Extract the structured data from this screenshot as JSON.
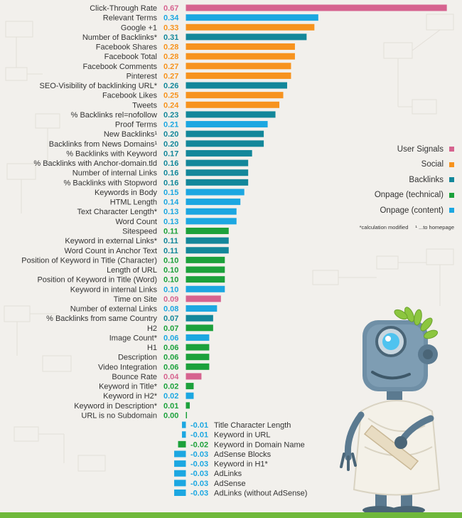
{
  "chart_data": {
    "type": "bar",
    "orientation": "horizontal",
    "title": "",
    "xlabel": "",
    "ylabel": "",
    "grid": false,
    "legend_placement": "right",
    "categories": [
      "Click-Through Rate",
      "Relevant Terms",
      "Google +1",
      "Number of Backlinks*",
      "Facebook Shares",
      "Facebook Total",
      "Facebook Comments",
      "Pinterest",
      "SEO-Visibility of backlinking URL*",
      "Facebook Likes",
      "Tweets",
      "% Backlinks rel=nofollow",
      "Proof Terms",
      "New Backlinks¹",
      "Backlinks from News Domains¹",
      "% Backlinks with Keyword",
      "% Backlinks with Anchor-domain.tld",
      "Number of internal Links",
      "% Backlinks with Stopword",
      "Keywords in Body",
      "HTML Length",
      "Text Character Length*",
      "Word Count",
      "Sitespeed",
      "Keyword in external Links*",
      "Word Count in Anchor Text",
      "Position of Keyword in Title (Character)",
      "Length of URL",
      "Position of Keyword in Title (Word)",
      "Keyword in internal Links",
      "Time on Site",
      "Number of external Links",
      "% Backlinks from same Country",
      "H2",
      "Image Count*",
      "H1",
      "Description",
      "Video Integration",
      "Bounce Rate",
      "Keyword in Title*",
      "Keyword in H2*",
      "Keyword in Description*",
      "URL is no Subdomain",
      "Title Character Length",
      "Keyword in URL",
      "Keyword in Domain Name",
      "AdSense Blocks",
      "Keyword in H1*",
      "AdLinks",
      "AdSense",
      "AdLinks (without AdSense)"
    ],
    "values": [
      0.67,
      0.34,
      0.33,
      0.31,
      0.28,
      0.28,
      0.27,
      0.27,
      0.26,
      0.25,
      0.24,
      0.23,
      0.21,
      0.2,
      0.2,
      0.17,
      0.16,
      0.16,
      0.16,
      0.15,
      0.14,
      0.13,
      0.13,
      0.11,
      0.11,
      0.11,
      0.1,
      0.1,
      0.1,
      0.1,
      0.09,
      0.08,
      0.07,
      0.07,
      0.06,
      0.06,
      0.06,
      0.06,
      0.04,
      0.02,
      0.02,
      0.01,
      0.0,
      -0.01,
      -0.01,
      -0.02,
      -0.03,
      -0.03,
      -0.03,
      -0.03,
      -0.03
    ],
    "value_labels": [
      "0.67",
      "0.34",
      "0.33",
      "0.31",
      "0.28",
      "0.28",
      "0.27",
      "0.27",
      "0.26",
      "0.25",
      "0.24",
      "0.23",
      "0.21",
      "0.20",
      "0.20",
      "0.17",
      "0.16",
      "0.16",
      "0.16",
      "0.15",
      "0.14",
      "0.13",
      "0.13",
      "0.11",
      "0.11",
      "0.11",
      "0.10",
      "0.10",
      "0.10",
      "0.10",
      "0.09",
      "0.08",
      "0.07",
      "0.07",
      "0.06",
      "0.06",
      "0.06",
      "0.06",
      "0.04",
      "0.02",
      "0.02",
      "0.01",
      "0.00",
      "-0.01",
      "-0.01",
      "-0.02",
      "-0.03",
      "-0.03",
      "-0.03",
      "-0.03",
      "-0.03"
    ],
    "groups": [
      "signals",
      "content",
      "social",
      "backlinks",
      "social",
      "social",
      "social",
      "social",
      "backlinks",
      "social",
      "social",
      "backlinks",
      "content",
      "backlinks",
      "backlinks",
      "backlinks",
      "backlinks",
      "backlinks",
      "backlinks",
      "content",
      "content",
      "content",
      "content",
      "technical",
      "backlinks",
      "backlinks",
      "technical",
      "technical",
      "technical",
      "content",
      "signals",
      "content",
      "backlinks",
      "technical",
      "content",
      "technical",
      "technical",
      "technical",
      "signals",
      "technical",
      "content",
      "technical",
      "technical",
      "content",
      "content",
      "technical",
      "content",
      "content",
      "content",
      "content",
      "content"
    ],
    "series": [
      {
        "key": "signals",
        "name": "User Signals",
        "color": "#d6638f"
      },
      {
        "key": "social",
        "name": "Social",
        "color": "#f7931e"
      },
      {
        "key": "backlinks",
        "name": "Backlinks",
        "color": "#13879a"
      },
      {
        "key": "technical",
        "name": "Onpage (technical)",
        "color": "#1ca13b"
      },
      {
        "key": "content",
        "name": "Onpage (content)",
        "color": "#1ca7e1"
      }
    ],
    "xlim": [
      -0.03,
      0.67
    ]
  },
  "footnote": {
    "calc": "*calculation modified",
    "home": "¹ ...to homepage"
  }
}
